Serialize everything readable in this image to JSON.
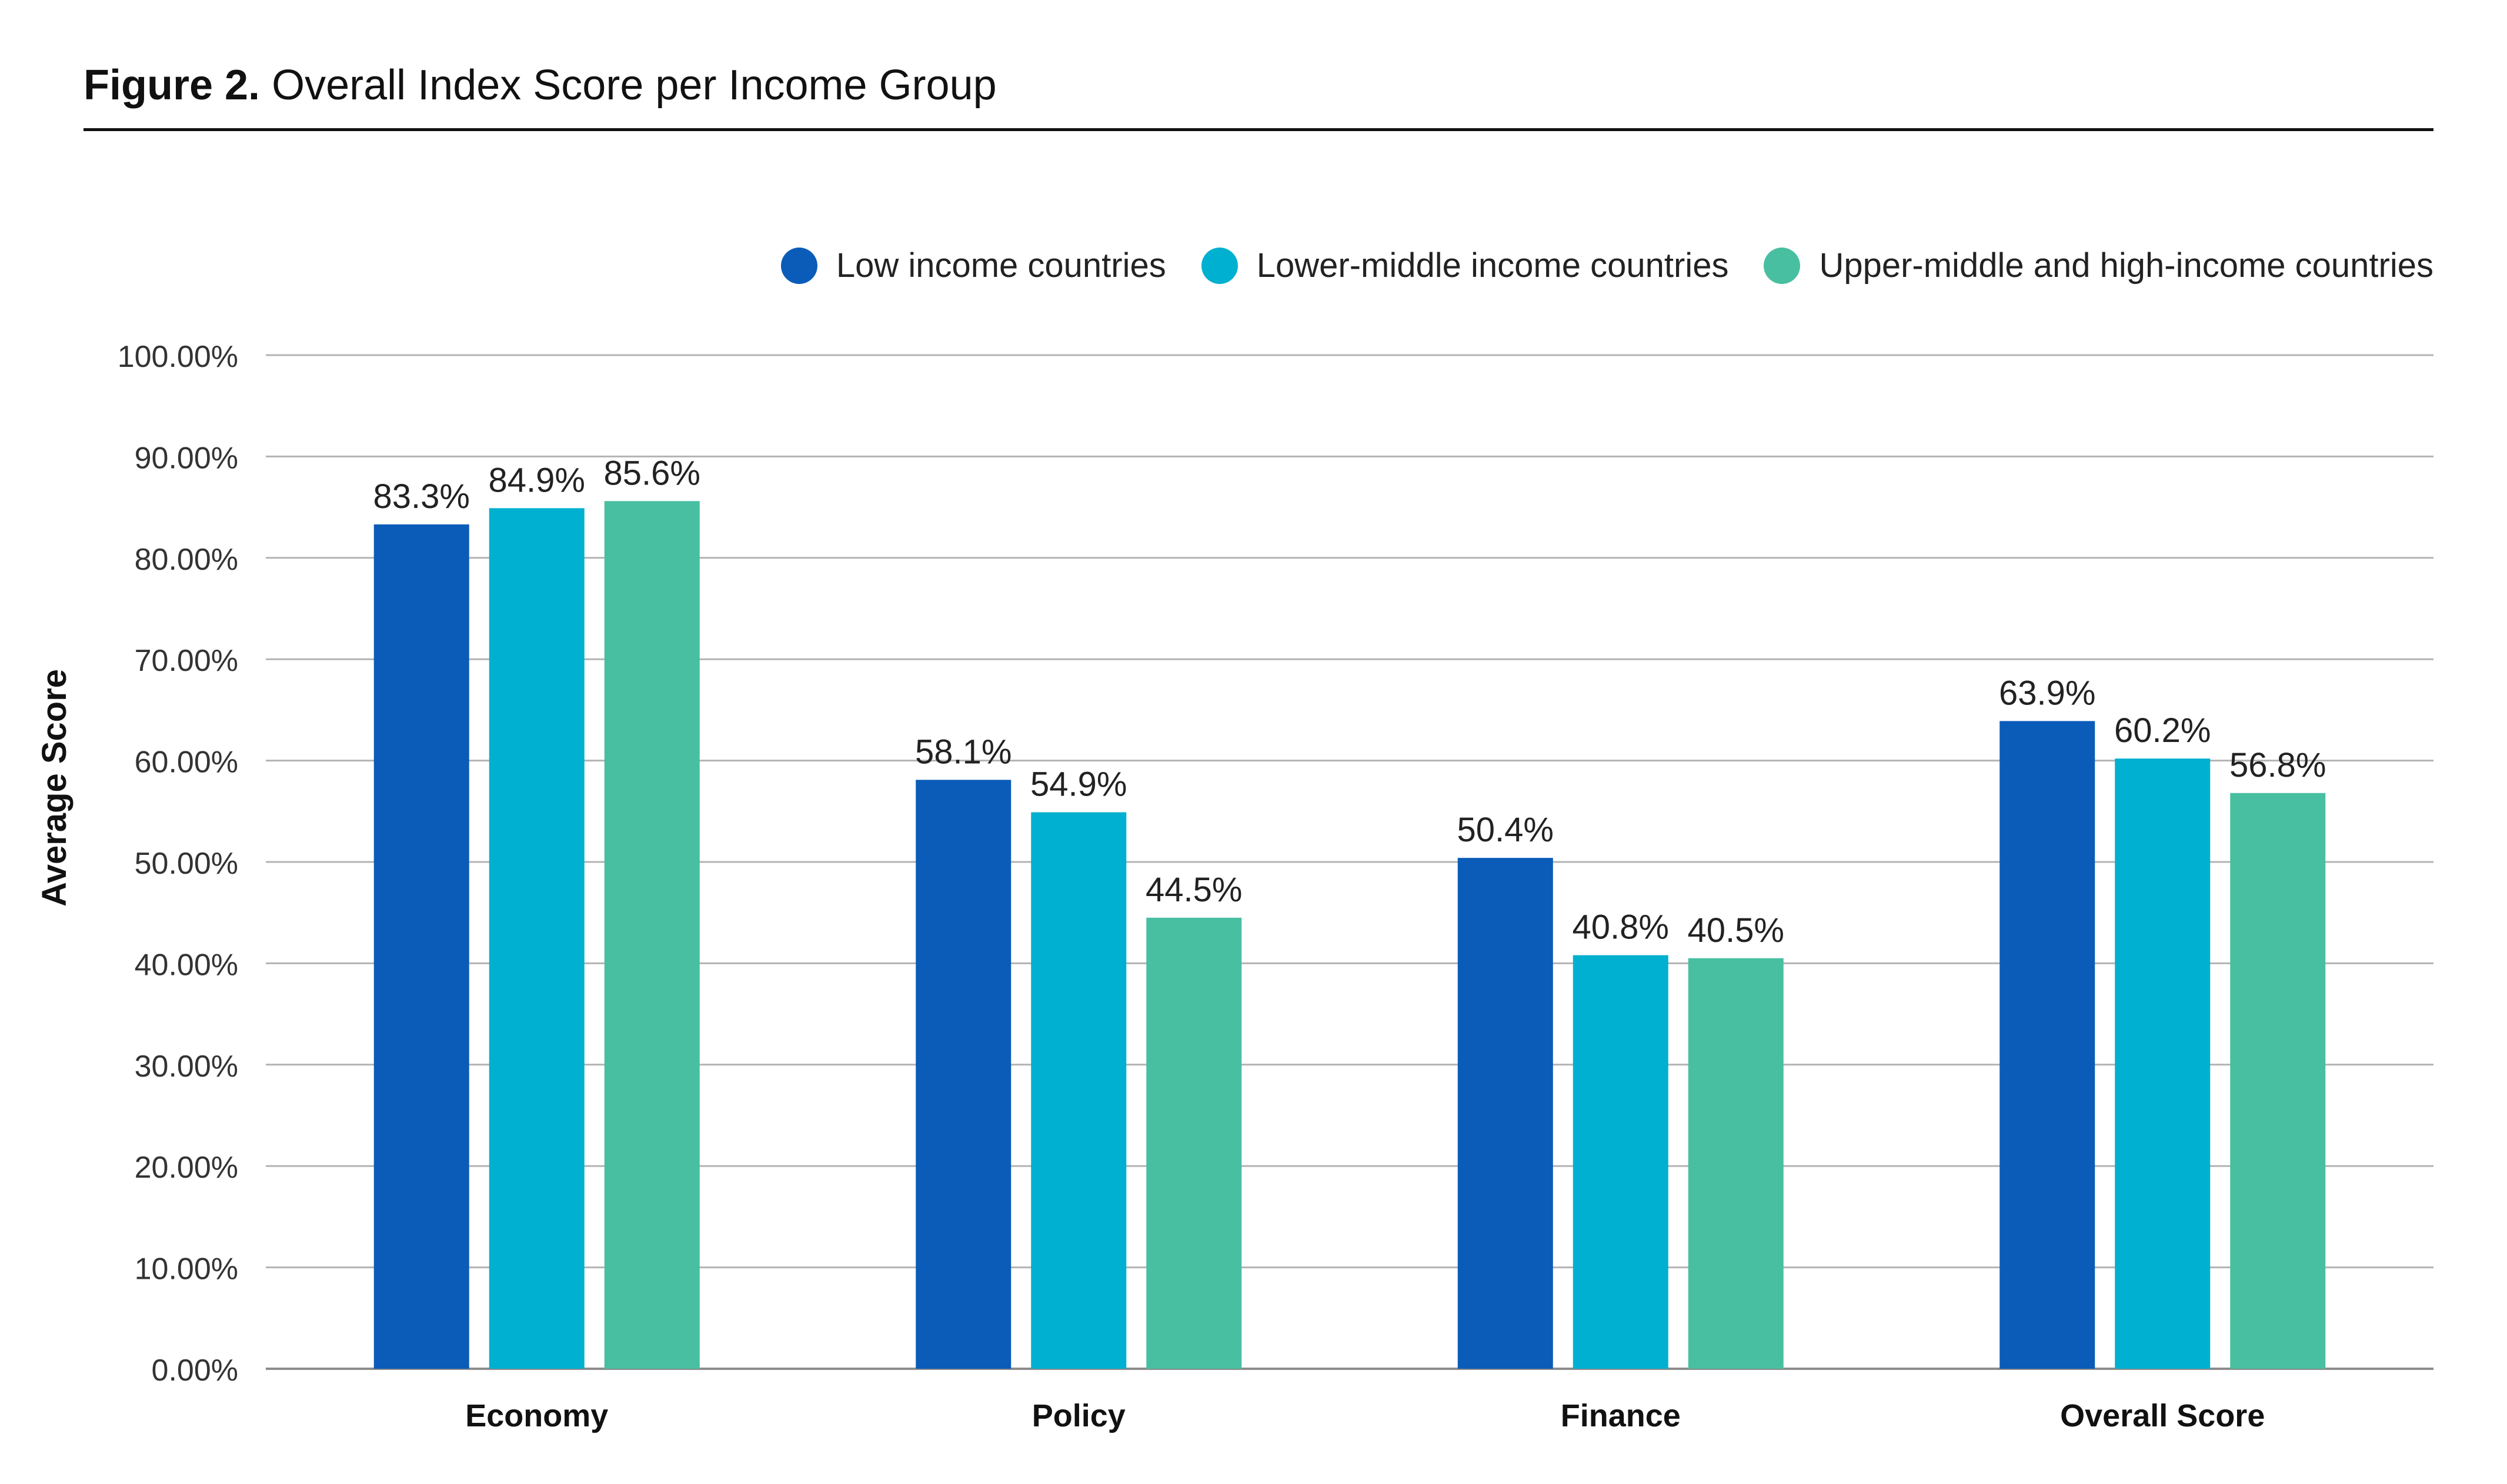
{
  "figure": {
    "label": "Figure 2.",
    "title": "Overall Index Score per Income Group"
  },
  "chart_data": {
    "type": "bar",
    "title": "Overall Index Score per Income Group",
    "ylabel": "Average Score",
    "xlabel": "",
    "ylim": [
      0,
      100
    ],
    "yticks": [
      0,
      10,
      20,
      30,
      40,
      50,
      60,
      70,
      80,
      90,
      100
    ],
    "ytick_labels": [
      "0.00%",
      "10.00%",
      "20.00%",
      "30.00%",
      "40.00%",
      "50.00%",
      "60.00%",
      "70.00%",
      "80.00%",
      "90.00%",
      "100.00%"
    ],
    "grid": true,
    "legend_position": "top-right",
    "categories": [
      "Economy",
      "Policy",
      "Finance",
      "Overall Score"
    ],
    "series": [
      {
        "name": "Low income countries",
        "color": "#0b5cb8",
        "values": [
          83.3,
          58.1,
          50.4,
          63.9
        ],
        "labels": [
          "83.3%",
          "58.1%",
          "50.4%",
          "63.9%"
        ]
      },
      {
        "name": "Lower-middle income countries",
        "color": "#00b0d0",
        "values": [
          84.9,
          54.9,
          40.8,
          60.2
        ],
        "labels": [
          "84.9%",
          "54.9%",
          "40.8%",
          "60.2%"
        ]
      },
      {
        "name": "Upper-middle and high-income countries",
        "color": "#48bfa1",
        "values": [
          85.6,
          44.5,
          40.5,
          56.8
        ],
        "labels": [
          "85.6%",
          "44.5%",
          "40.5%",
          "56.8%"
        ]
      }
    ]
  }
}
